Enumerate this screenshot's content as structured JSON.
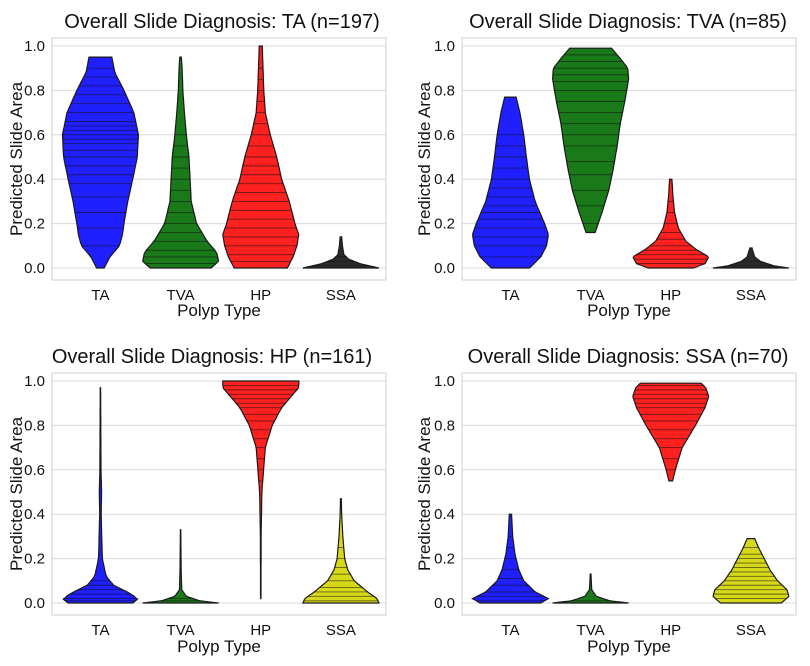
{
  "chart_data": [
    {
      "type": "violin",
      "title": "Overall Slide Diagnosis: TA (n=197)",
      "xlabel": "Polyp Type",
      "ylabel": "Predicted Slide Area",
      "ylim": [
        0,
        1
      ],
      "yticks": [
        "0.0",
        "0.2",
        "0.4",
        "0.6",
        "0.8",
        "1.0"
      ],
      "categories": [
        "TA",
        "TVA",
        "HP",
        "SSA"
      ],
      "grid": true,
      "violins": [
        {
          "category": "TA",
          "color": "#1f1fff",
          "min": 0.0,
          "max": 0.95,
          "profile": [
            [
              0.0,
              0.1
            ],
            [
              0.05,
              0.25
            ],
            [
              0.1,
              0.5
            ],
            [
              0.15,
              0.58
            ],
            [
              0.2,
              0.62
            ],
            [
              0.3,
              0.72
            ],
            [
              0.4,
              0.85
            ],
            [
              0.5,
              0.97
            ],
            [
              0.6,
              1.0
            ],
            [
              0.7,
              0.88
            ],
            [
              0.8,
              0.62
            ],
            [
              0.88,
              0.38
            ],
            [
              0.95,
              0.3
            ]
          ],
          "lines": [
            0.1,
            0.18,
            0.25,
            0.32,
            0.38,
            0.42,
            0.46,
            0.5,
            0.53,
            0.56,
            0.58,
            0.6,
            0.62,
            0.64,
            0.66,
            0.7,
            0.74,
            0.78,
            0.82,
            0.86,
            0.9
          ]
        },
        {
          "category": "TVA",
          "color": "#1a7a1a",
          "min": 0.0,
          "max": 0.95,
          "profile": [
            [
              0.0,
              0.8
            ],
            [
              0.03,
              1.0
            ],
            [
              0.07,
              0.95
            ],
            [
              0.12,
              0.7
            ],
            [
              0.2,
              0.42
            ],
            [
              0.3,
              0.28
            ],
            [
              0.4,
              0.25
            ],
            [
              0.5,
              0.22
            ],
            [
              0.6,
              0.15
            ],
            [
              0.7,
              0.1
            ],
            [
              0.8,
              0.06
            ],
            [
              0.9,
              0.04
            ],
            [
              0.95,
              0.02
            ]
          ],
          "lines": [
            0.02,
            0.05,
            0.08,
            0.12,
            0.16,
            0.2,
            0.25,
            0.3,
            0.35,
            0.4,
            0.45,
            0.5,
            0.55,
            0.6
          ]
        },
        {
          "category": "HP",
          "color": "#ff2020",
          "min": 0.0,
          "max": 1.0,
          "profile": [
            [
              0.0,
              0.7
            ],
            [
              0.05,
              0.85
            ],
            [
              0.1,
              0.95
            ],
            [
              0.15,
              1.0
            ],
            [
              0.2,
              0.9
            ],
            [
              0.3,
              0.75
            ],
            [
              0.4,
              0.55
            ],
            [
              0.5,
              0.42
            ],
            [
              0.6,
              0.25
            ],
            [
              0.7,
              0.12
            ],
            [
              0.8,
              0.08
            ],
            [
              0.9,
              0.06
            ],
            [
              1.0,
              0.04
            ]
          ],
          "lines": [
            0.03,
            0.06,
            0.1,
            0.14,
            0.18,
            0.22,
            0.26,
            0.3,
            0.34,
            0.38,
            0.42,
            0.46,
            0.5,
            0.55,
            0.6,
            0.65,
            0.7,
            0.75,
            0.8,
            0.85,
            0.9
          ]
        },
        {
          "category": "SSA",
          "color": "#2a2a2a",
          "min": 0.0,
          "max": 0.14,
          "profile": [
            [
              0.0,
              1.0
            ],
            [
              0.02,
              0.5
            ],
            [
              0.04,
              0.2
            ],
            [
              0.06,
              0.08
            ],
            [
              0.1,
              0.04
            ],
            [
              0.14,
              0.02
            ]
          ],
          "lines": [
            0.01,
            0.03,
            0.05
          ]
        }
      ]
    },
    {
      "type": "violin",
      "title": "Overall Slide Diagnosis: TVA (n=85)",
      "xlabel": "Polyp Type",
      "ylabel": "Predicted Slide Area",
      "ylim": [
        0,
        1
      ],
      "yticks": [
        "0.0",
        "0.2",
        "0.4",
        "0.6",
        "0.8",
        "1.0"
      ],
      "categories": [
        "TA",
        "TVA",
        "HP",
        "SSA"
      ],
      "grid": true,
      "violins": [
        {
          "category": "TA",
          "color": "#1f1fff",
          "min": 0.0,
          "max": 0.77,
          "profile": [
            [
              0.0,
              0.5
            ],
            [
              0.05,
              0.8
            ],
            [
              0.1,
              0.95
            ],
            [
              0.15,
              1.0
            ],
            [
              0.2,
              0.9
            ],
            [
              0.3,
              0.65
            ],
            [
              0.4,
              0.5
            ],
            [
              0.5,
              0.42
            ],
            [
              0.6,
              0.35
            ],
            [
              0.7,
              0.25
            ],
            [
              0.77,
              0.15
            ]
          ],
          "lines": [
            0.05,
            0.1,
            0.14,
            0.18,
            0.22,
            0.25,
            0.28,
            0.32,
            0.36,
            0.4,
            0.45,
            0.5,
            0.55,
            0.6
          ]
        },
        {
          "category": "TVA",
          "color": "#1a7a1a",
          "min": 0.16,
          "max": 0.99,
          "profile": [
            [
              0.16,
              0.12
            ],
            [
              0.25,
              0.3
            ],
            [
              0.35,
              0.48
            ],
            [
              0.45,
              0.6
            ],
            [
              0.55,
              0.7
            ],
            [
              0.65,
              0.78
            ],
            [
              0.75,
              0.9
            ],
            [
              0.85,
              1.0
            ],
            [
              0.9,
              0.98
            ],
            [
              0.95,
              0.75
            ],
            [
              0.99,
              0.55
            ]
          ],
          "lines": [
            0.2,
            0.28,
            0.35,
            0.42,
            0.48,
            0.55,
            0.6,
            0.65,
            0.7,
            0.75,
            0.8,
            0.84,
            0.87,
            0.9,
            0.93,
            0.96
          ]
        },
        {
          "category": "HP",
          "color": "#ff2020",
          "min": 0.0,
          "max": 0.4,
          "profile": [
            [
              0.0,
              0.6
            ],
            [
              0.02,
              0.9
            ],
            [
              0.05,
              1.0
            ],
            [
              0.08,
              0.7
            ],
            [
              0.12,
              0.4
            ],
            [
              0.18,
              0.2
            ],
            [
              0.25,
              0.1
            ],
            [
              0.32,
              0.06
            ],
            [
              0.4,
              0.03
            ]
          ],
          "lines": [
            0.02,
            0.04,
            0.06,
            0.08,
            0.1,
            0.13,
            0.16,
            0.2,
            0.25,
            0.3
          ]
        },
        {
          "category": "SSA",
          "color": "#2a2a2a",
          "min": 0.0,
          "max": 0.09,
          "profile": [
            [
              0.0,
              1.0
            ],
            [
              0.01,
              0.6
            ],
            [
              0.03,
              0.25
            ],
            [
              0.05,
              0.1
            ],
            [
              0.09,
              0.03
            ]
          ],
          "lines": [
            0.01,
            0.03
          ]
        }
      ]
    },
    {
      "type": "violin",
      "title": "Overall Slide Diagnosis: HP (n=161)",
      "xlabel": "Polyp Type",
      "ylabel": "Predicted Slide Area",
      "ylim": [
        0,
        1
      ],
      "yticks": [
        "0.0",
        "0.2",
        "0.4",
        "0.6",
        "0.8",
        "1.0"
      ],
      "categories": [
        "TA",
        "TVA",
        "HP",
        "SSA"
      ],
      "grid": true,
      "violins": [
        {
          "category": "TA",
          "color": "#1f1fff",
          "min": 0.0,
          "max": 0.97,
          "profile": [
            [
              0.0,
              0.85
            ],
            [
              0.02,
              1.0
            ],
            [
              0.05,
              0.7
            ],
            [
              0.08,
              0.35
            ],
            [
              0.12,
              0.15
            ],
            [
              0.2,
              0.05
            ],
            [
              0.4,
              0.02
            ],
            [
              0.5,
              0.03
            ],
            [
              0.6,
              0.015
            ],
            [
              0.97,
              0.005
            ]
          ],
          "lines": [
            0.01,
            0.02,
            0.04,
            0.06,
            0.08,
            0.1
          ]
        },
        {
          "category": "TVA",
          "color": "#1a7a1a",
          "min": 0.0,
          "max": 0.33,
          "profile": [
            [
              0.0,
              1.0
            ],
            [
              0.01,
              0.5
            ],
            [
              0.03,
              0.15
            ],
            [
              0.06,
              0.03
            ],
            [
              0.15,
              0.015
            ],
            [
              0.33,
              0.005
            ]
          ],
          "lines": [
            0.01,
            0.02
          ]
        },
        {
          "category": "HP",
          "color": "#ff2020",
          "min": 0.02,
          "max": 1.0,
          "profile": [
            [
              0.02,
              0.005
            ],
            [
              0.3,
              0.01
            ],
            [
              0.5,
              0.03
            ],
            [
              0.7,
              0.12
            ],
            [
              0.8,
              0.3
            ],
            [
              0.88,
              0.55
            ],
            [
              0.93,
              0.8
            ],
            [
              0.97,
              1.0
            ],
            [
              1.0,
              1.0
            ]
          ],
          "lines": [
            0.55,
            0.6,
            0.65,
            0.7,
            0.74,
            0.78,
            0.82,
            0.85,
            0.88,
            0.9,
            0.92,
            0.94,
            0.96,
            0.98
          ]
        },
        {
          "category": "SSA",
          "color": "#d8d81a",
          "min": 0.0,
          "max": 0.47,
          "profile": [
            [
              0.0,
              1.0
            ],
            [
              0.02,
              0.95
            ],
            [
              0.05,
              0.7
            ],
            [
              0.1,
              0.35
            ],
            [
              0.15,
              0.18
            ],
            [
              0.2,
              0.1
            ],
            [
              0.3,
              0.05
            ],
            [
              0.4,
              0.02
            ],
            [
              0.47,
              0.01
            ]
          ],
          "lines": [
            0.01,
            0.03,
            0.05,
            0.07,
            0.1,
            0.13,
            0.16,
            0.2,
            0.25
          ]
        }
      ]
    },
    {
      "type": "violin",
      "title": "Overall Slide Diagnosis: SSA (n=70)",
      "xlabel": "Polyp Type",
      "ylabel": "Predicted Slide Area",
      "ylim": [
        0,
        1
      ],
      "yticks": [
        "0.0",
        "0.2",
        "0.4",
        "0.6",
        "0.8",
        "1.0"
      ],
      "categories": [
        "TA",
        "TVA",
        "HP",
        "SSA"
      ],
      "grid": true,
      "violins": [
        {
          "category": "TA",
          "color": "#1f1fff",
          "min": 0.0,
          "max": 0.4,
          "profile": [
            [
              0.0,
              0.8
            ],
            [
              0.02,
              1.0
            ],
            [
              0.05,
              0.65
            ],
            [
              0.1,
              0.35
            ],
            [
              0.15,
              0.22
            ],
            [
              0.22,
              0.12
            ],
            [
              0.3,
              0.06
            ],
            [
              0.4,
              0.03
            ]
          ],
          "lines": [
            0.01,
            0.03,
            0.05,
            0.08,
            0.11,
            0.15,
            0.2,
            0.25,
            0.3
          ]
        },
        {
          "category": "TVA",
          "color": "#1a7a1a",
          "min": 0.0,
          "max": 0.13,
          "profile": [
            [
              0.0,
              1.0
            ],
            [
              0.01,
              0.5
            ],
            [
              0.03,
              0.15
            ],
            [
              0.06,
              0.03
            ],
            [
              0.13,
              0.01
            ]
          ],
          "lines": [
            0.01
          ]
        },
        {
          "category": "HP",
          "color": "#ff2020",
          "min": 0.55,
          "max": 0.99,
          "profile": [
            [
              0.55,
              0.05
            ],
            [
              0.6,
              0.12
            ],
            [
              0.7,
              0.3
            ],
            [
              0.8,
              0.65
            ],
            [
              0.88,
              0.9
            ],
            [
              0.93,
              1.0
            ],
            [
              0.97,
              0.92
            ],
            [
              0.99,
              0.8
            ]
          ],
          "lines": [
            0.6,
            0.65,
            0.7,
            0.74,
            0.78,
            0.82,
            0.85,
            0.88,
            0.9,
            0.92,
            0.94,
            0.96,
            0.98
          ]
        },
        {
          "category": "SSA",
          "color": "#d8d81a",
          "min": 0.0,
          "max": 0.29,
          "profile": [
            [
              0.0,
              0.8
            ],
            [
              0.03,
              1.0
            ],
            [
              0.06,
              0.95
            ],
            [
              0.1,
              0.7
            ],
            [
              0.15,
              0.5
            ],
            [
              0.2,
              0.35
            ],
            [
              0.25,
              0.2
            ],
            [
              0.29,
              0.1
            ]
          ],
          "lines": [
            0.02,
            0.04,
            0.06,
            0.08,
            0.1,
            0.12,
            0.14,
            0.16,
            0.18,
            0.2,
            0.22,
            0.25
          ]
        }
      ]
    }
  ]
}
